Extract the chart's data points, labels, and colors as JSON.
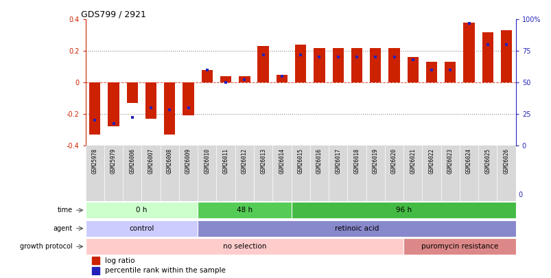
{
  "title": "GDS799 / 2921",
  "samples": [
    "GSM25978",
    "GSM25979",
    "GSM26006",
    "GSM26007",
    "GSM26008",
    "GSM26009",
    "GSM26010",
    "GSM26011",
    "GSM26012",
    "GSM26013",
    "GSM26014",
    "GSM26015",
    "GSM26016",
    "GSM26017",
    "GSM26018",
    "GSM26019",
    "GSM26020",
    "GSM26021",
    "GSM26022",
    "GSM26023",
    "GSM26024",
    "GSM26025",
    "GSM26026"
  ],
  "log_ratio": [
    -0.33,
    -0.28,
    -0.13,
    -0.23,
    -0.33,
    -0.21,
    0.08,
    0.04,
    0.04,
    0.23,
    0.05,
    0.24,
    0.22,
    0.22,
    0.22,
    0.22,
    0.22,
    0.16,
    0.13,
    0.13,
    0.38,
    0.32,
    0.33
  ],
  "percentile": [
    20,
    17,
    22,
    30,
    28,
    30,
    60,
    50,
    52,
    72,
    55,
    72,
    70,
    70,
    70,
    70,
    70,
    68,
    60,
    60,
    97,
    80,
    80
  ],
  "ylim": [
    -0.4,
    0.4
  ],
  "right_ylim": [
    0,
    100
  ],
  "bar_color": "#cc2200",
  "dot_color": "#2222bb",
  "time_groups": [
    {
      "label": "0 h",
      "start": 0,
      "end": 6,
      "color": "#ccffcc"
    },
    {
      "label": "48 h",
      "start": 6,
      "end": 11,
      "color": "#55cc55"
    },
    {
      "label": "96 h",
      "start": 11,
      "end": 23,
      "color": "#44bb44"
    }
  ],
  "agent_groups": [
    {
      "label": "control",
      "start": 0,
      "end": 6,
      "color": "#ccccff"
    },
    {
      "label": "retinoic acid",
      "start": 6,
      "end": 23,
      "color": "#8888cc"
    }
  ],
  "growth_groups": [
    {
      "label": "no selection",
      "start": 0,
      "end": 17,
      "color": "#ffcccc"
    },
    {
      "label": "puromycin resistance",
      "start": 17,
      "end": 23,
      "color": "#dd8888"
    }
  ],
  "legend_items": [
    {
      "label": "log ratio",
      "color": "#cc2200"
    },
    {
      "label": "percentile rank within the sample",
      "color": "#2222bb"
    }
  ]
}
